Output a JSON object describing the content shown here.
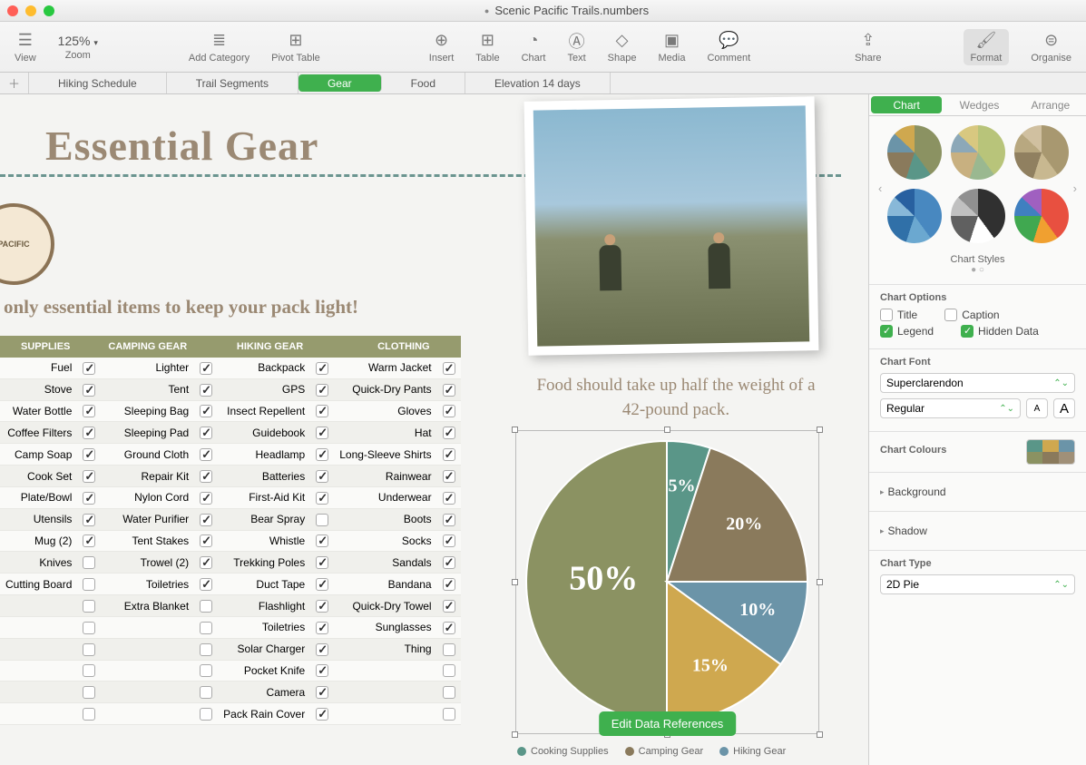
{
  "window": {
    "title": "Scenic Pacific Trails.numbers"
  },
  "toolbar": {
    "view": "View",
    "zoom": "Zoom",
    "zoom_value": "125%",
    "add_category": "Add Category",
    "pivot_table": "Pivot Table",
    "insert": "Insert",
    "table": "Table",
    "chart": "Chart",
    "text": "Text",
    "shape": "Shape",
    "media": "Media",
    "comment": "Comment",
    "share": "Share",
    "format": "Format",
    "organise": "Organise"
  },
  "sheets": [
    "Hiking Schedule",
    "Trail Segments",
    "Gear",
    "Food",
    "Elevation 14 days"
  ],
  "sheets_active_index": 2,
  "canvas": {
    "heading": "Essential Gear",
    "subheading": "only essential items to keep your pack light!",
    "badge_text": "PACIFIC",
    "caption": "Food should take up half the weight of a 42-pound pack.",
    "edit_btn": "Edit Data References"
  },
  "gear_table": {
    "columns": [
      "SUPPLIES",
      "CAMPING GEAR",
      "HIKING GEAR",
      "CLOTHING"
    ],
    "rows": [
      [
        [
          "Fuel",
          true
        ],
        [
          "Lighter",
          true
        ],
        [
          "Backpack",
          true
        ],
        [
          "Warm Jacket",
          true
        ]
      ],
      [
        [
          "Stove",
          true
        ],
        [
          "Tent",
          true
        ],
        [
          "GPS",
          true
        ],
        [
          "Quick-Dry Pants",
          true
        ]
      ],
      [
        [
          "Water Bottle",
          true
        ],
        [
          "Sleeping Bag",
          true
        ],
        [
          "Insect Repellent",
          true
        ],
        [
          "Gloves",
          true
        ]
      ],
      [
        [
          "Coffee Filters",
          true
        ],
        [
          "Sleeping Pad",
          true
        ],
        [
          "Guidebook",
          true
        ],
        [
          "Hat",
          true
        ]
      ],
      [
        [
          "Camp Soap",
          true
        ],
        [
          "Ground Cloth",
          true
        ],
        [
          "Headlamp",
          true
        ],
        [
          "Long-Sleeve Shirts",
          true
        ]
      ],
      [
        [
          "Cook Set",
          true
        ],
        [
          "Repair Kit",
          true
        ],
        [
          "Batteries",
          true
        ],
        [
          "Rainwear",
          true
        ]
      ],
      [
        [
          "Plate/Bowl",
          true
        ],
        [
          "Nylon Cord",
          true
        ],
        [
          "First-Aid Kit",
          true
        ],
        [
          "Underwear",
          true
        ]
      ],
      [
        [
          "Utensils",
          true
        ],
        [
          "Water Purifier",
          true
        ],
        [
          "Bear Spray",
          false
        ],
        [
          "Boots",
          true
        ]
      ],
      [
        [
          "Mug (2)",
          true
        ],
        [
          "Tent Stakes",
          true
        ],
        [
          "Whistle",
          true
        ],
        [
          "Socks",
          true
        ]
      ],
      [
        [
          "Knives",
          false
        ],
        [
          "Trowel (2)",
          true
        ],
        [
          "Trekking Poles",
          true
        ],
        [
          "Sandals",
          true
        ]
      ],
      [
        [
          "Cutting Board",
          false
        ],
        [
          "Toiletries",
          true
        ],
        [
          "Duct Tape",
          true
        ],
        [
          "Bandana",
          true
        ]
      ],
      [
        [
          "",
          false
        ],
        [
          "Extra Blanket",
          false
        ],
        [
          "Flashlight",
          true
        ],
        [
          "Quick-Dry Towel",
          true
        ]
      ],
      [
        [
          "",
          false
        ],
        [
          "",
          false
        ],
        [
          "Toiletries",
          true
        ],
        [
          "Sunglasses",
          true
        ]
      ],
      [
        [
          "",
          false
        ],
        [
          "",
          false
        ],
        [
          "Solar Charger",
          true
        ],
        [
          "Thing",
          false
        ]
      ],
      [
        [
          "",
          false
        ],
        [
          "",
          false
        ],
        [
          "Pocket Knife",
          true
        ],
        [
          "",
          false
        ]
      ],
      [
        [
          "",
          false
        ],
        [
          "",
          false
        ],
        [
          "Camera",
          true
        ],
        [
          "",
          false
        ]
      ],
      [
        [
          "",
          false
        ],
        [
          "",
          false
        ],
        [
          "Pack Rain Cover",
          true
        ],
        [
          "",
          false
        ]
      ]
    ]
  },
  "pie_chart": {
    "type": "pie",
    "slices": [
      {
        "label": "50%",
        "value": 50,
        "color": "#8b9262"
      },
      {
        "label": "5%",
        "value": 5,
        "color": "#5a9688"
      },
      {
        "label": "20%",
        "value": 20,
        "color": "#8a7a5c"
      },
      {
        "label": "10%",
        "value": 10,
        "color": "#6b94a8"
      },
      {
        "label": "15%",
        "value": 15,
        "color": "#cfa84f"
      }
    ],
    "label_font": "Georgia",
    "label_color": "#ffffff",
    "big_label_fontsize": 38,
    "small_label_fontsize": 20
  },
  "pie_legend": [
    {
      "label": "Cooking Supplies",
      "color": "#5a9688"
    },
    {
      "label": "Camping Gear",
      "color": "#8a7a5c"
    },
    {
      "label": "Hiking Gear",
      "color": "#6b94a8"
    }
  ],
  "inspector": {
    "tabs": [
      "Chart",
      "Wedges",
      "Arrange"
    ],
    "active_tab": 0,
    "chart_styles_label": "Chart Styles",
    "style_palettes": [
      [
        "#8b9262",
        "#5a9688",
        "#8a7a5c",
        "#6b94a8",
        "#cfa84f"
      ],
      [
        "#b8c47a",
        "#9ab890",
        "#c8b080",
        "#8ca8b8",
        "#d8c880"
      ],
      [
        "#a89870",
        "#c8b890",
        "#908060",
        "#b8a880",
        "#d0c0a0"
      ],
      [
        "#4888c0",
        "#6ba8d0",
        "#3070a8",
        "#88b8d8",
        "#2860a0"
      ],
      [
        "#303030",
        "#ffffff",
        "#606060",
        "#c0c0c0",
        "#909090"
      ],
      [
        "#e85040",
        "#f0a030",
        "#40a850",
        "#4080c0",
        "#a060c0"
      ]
    ],
    "options_title": "Chart Options",
    "options": {
      "title": {
        "label": "Title",
        "checked": false
      },
      "caption": {
        "label": "Caption",
        "checked": false
      },
      "legend": {
        "label": "Legend",
        "checked": true
      },
      "hidden_data": {
        "label": "Hidden Data",
        "checked": true
      }
    },
    "chart_font_title": "Chart Font",
    "chart_font": "Superclarendon",
    "chart_font_style": "Regular",
    "chart_colours_title": "Chart Colours",
    "colour_swatches": [
      "#5a9688",
      "#cfa84f",
      "#6b94a8",
      "#8b9262",
      "#8a7a5c",
      "#a09078"
    ],
    "background": "Background",
    "shadow": "Shadow",
    "chart_type_title": "Chart Type",
    "chart_type": "2D Pie"
  }
}
